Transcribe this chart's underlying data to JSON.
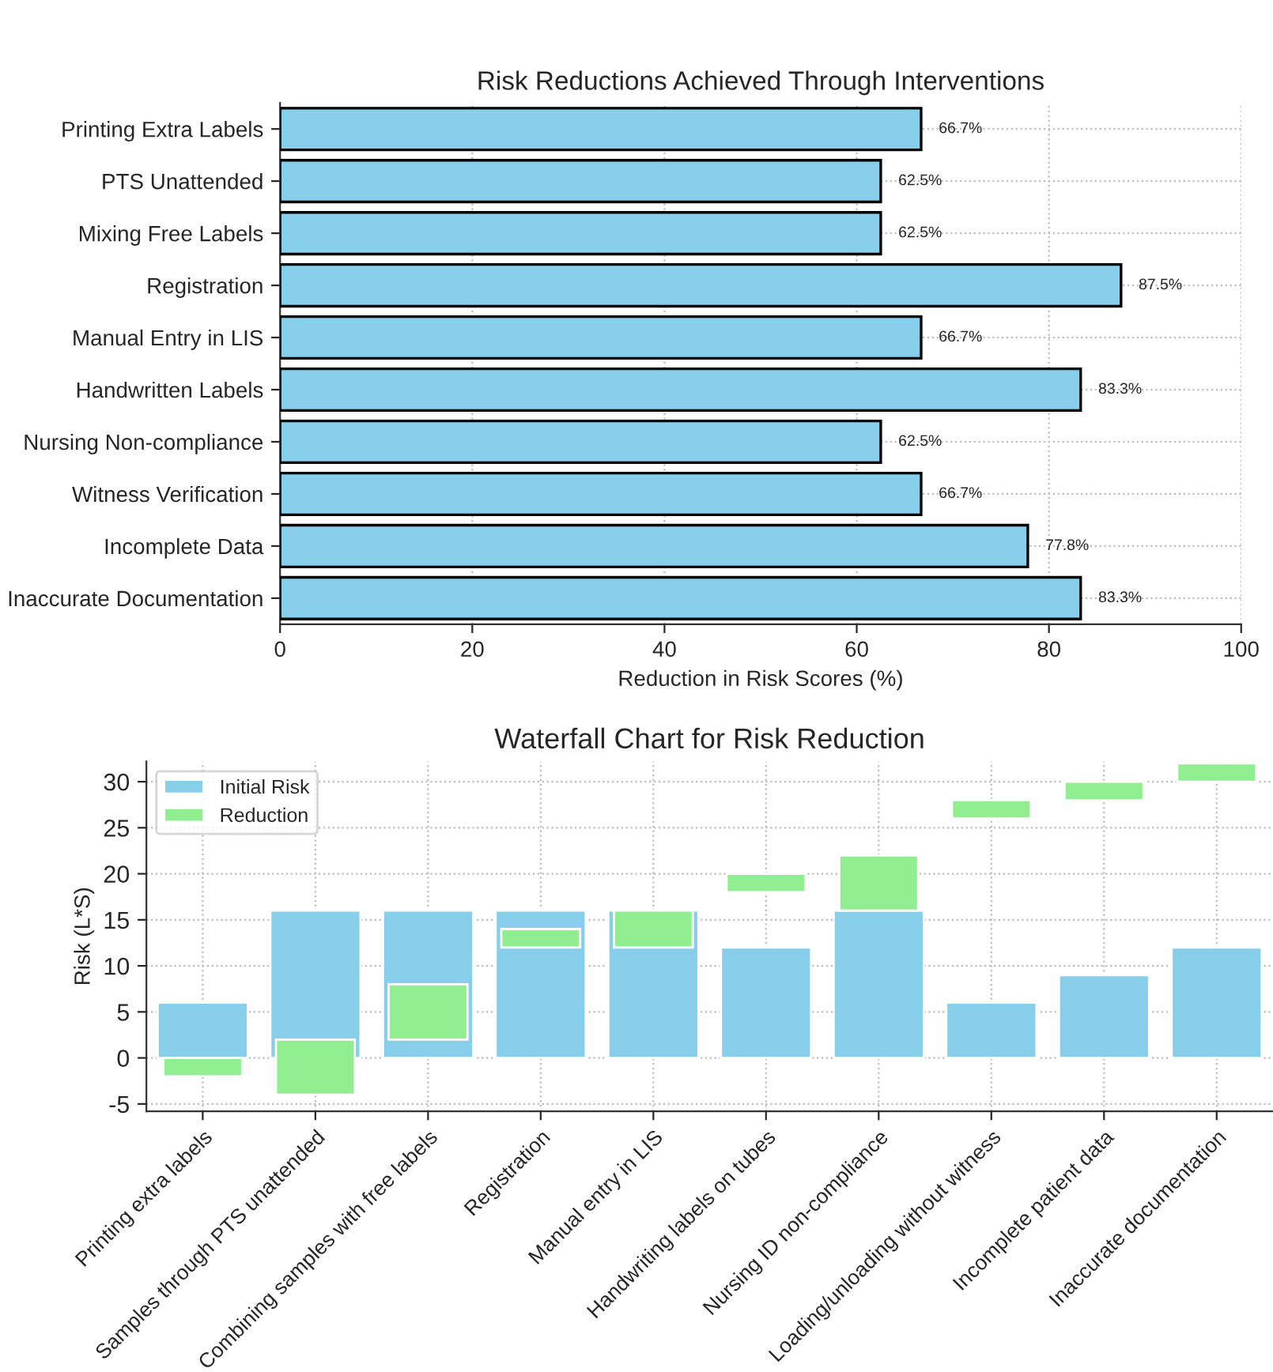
{
  "chart_data": [
    {
      "type": "bar",
      "orientation": "horizontal",
      "title": "Risk Reductions Achieved Through Interventions",
      "xlabel": "Reduction in Risk Scores (%)",
      "categories": [
        "Printing Extra Labels",
        "PTS Unattended",
        "Mixing Free Labels",
        "Registration",
        "Manual Entry in LIS",
        "Handwritten Labels",
        "Nursing Non-compliance",
        "Witness Verification",
        "Incomplete Data",
        "Inaccurate Documentation"
      ],
      "values": [
        66.7,
        62.5,
        62.5,
        87.5,
        66.7,
        83.3,
        62.5,
        66.7,
        77.8,
        83.3
      ],
      "value_labels": [
        "66.7%",
        "62.5%",
        "62.5%",
        "87.5%",
        "66.7%",
        "83.3%",
        "62.5%",
        "66.7%",
        "77.8%",
        "83.3%"
      ],
      "color": "#87ceeb",
      "xlim": [
        0,
        100
      ],
      "xticks": [
        0,
        20,
        40,
        60,
        80,
        100
      ],
      "grid": true
    },
    {
      "type": "bar",
      "title": "Waterfall Chart for Risk Reduction",
      "ylabel": "Risk (L*S)",
      "categories": [
        "Printing extra labels",
        "Samples through PTS unattended",
        "Combining samples with free labels",
        "Registration",
        "Manual entry in LIS",
        "Handwriting labels on tubes",
        "Nursing ID non-compliance",
        "Loading/unloading without witness",
        "Incomplete patient data",
        "Inaccurate documentation"
      ],
      "series": [
        {
          "name": "Initial Risk",
          "color": "#87ceeb",
          "values": [
            6,
            16,
            16,
            16,
            16,
            12,
            16,
            6,
            9,
            12
          ]
        },
        {
          "name": "Reduction",
          "color": "#90ee90",
          "values": [
            2,
            6,
            6,
            2,
            4,
            2,
            6,
            2,
            2,
            2
          ],
          "base": [
            -2,
            -4,
            2,
            12,
            12,
            18,
            16,
            26,
            28,
            30
          ]
        }
      ],
      "ylim": [
        -5.8,
        32.2
      ],
      "yticks": [
        -5,
        0,
        5,
        10,
        15,
        20,
        25,
        30
      ],
      "grid": true,
      "legend": "top left"
    }
  ]
}
